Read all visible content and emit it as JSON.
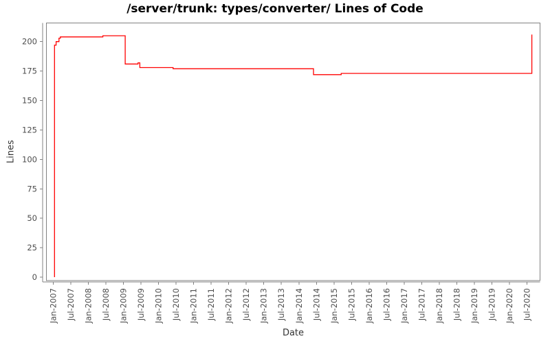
{
  "chart_data": {
    "type": "line",
    "subtype": "step-after",
    "title": "/server/trunk: types/converter/ Lines of Code",
    "xlabel": "Date",
    "ylabel": "Lines",
    "grid": false,
    "legend": "none",
    "line_color": "#ff0000",
    "axis_color": "#808080",
    "tick_label_color": "#4d4d4d",
    "axis_title_color": "#333333",
    "title_color": "#000000",
    "ylim": [
      0,
      215
    ],
    "y_ticks": [
      0,
      25,
      50,
      75,
      100,
      125,
      150,
      175,
      200
    ],
    "x_tick_labels": [
      "Jan-2007",
      "Jul-2007",
      "Jan-2008",
      "Jul-2008",
      "Jan-2009",
      "Jul-2009",
      "Jan-2010",
      "Jul-2010",
      "Jan-2011",
      "Jul-2011",
      "Jan-2012",
      "Jul-2012",
      "Jan-2013",
      "Jul-2013",
      "Jan-2014",
      "Jul-2014",
      "Jan-2015",
      "Jul-2015",
      "Jan-2016",
      "Jul-2016",
      "Jan-2017",
      "Jul-2017",
      "Jan-2018",
      "Jul-2018",
      "Jan-2019",
      "Jul-2019",
      "Jan-2020",
      "Jul-2020"
    ],
    "series": [
      {
        "name": "Lines of Code",
        "points": [
          {
            "date": "2007-01-15",
            "value": 0
          },
          {
            "date": "2007-01-15",
            "value": 197
          },
          {
            "date": "2007-02-01",
            "value": 200
          },
          {
            "date": "2007-03-01",
            "value": 203
          },
          {
            "date": "2007-03-15",
            "value": 204
          },
          {
            "date": "2008-06-01",
            "value": 205
          },
          {
            "date": "2009-01-20",
            "value": 181
          },
          {
            "date": "2009-06-01",
            "value": 182
          },
          {
            "date": "2009-06-20",
            "value": 178
          },
          {
            "date": "2010-06-01",
            "value": 177
          },
          {
            "date": "2014-06-01",
            "value": 172
          },
          {
            "date": "2015-03-15",
            "value": 173
          },
          {
            "date": "2020-08-20",
            "value": 206
          }
        ]
      }
    ]
  }
}
